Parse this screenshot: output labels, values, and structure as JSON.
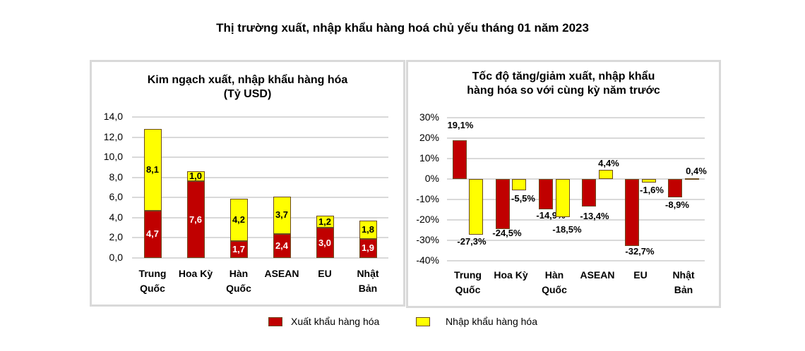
{
  "title": "Thị trường xuất, nhập khẩu hàng hoá chủ yếu tháng 01 năm 2023",
  "legend": [
    {
      "label": "Xuất khẩu hàng hóa",
      "color": "#c00000"
    },
    {
      "label": "Nhập khẩu hàng hóa",
      "color": "#ffff00"
    }
  ],
  "chart_data": [
    {
      "type": "bar",
      "stacked": true,
      "title": "Kim ngạch xuất, nhập khẩu hàng hóa",
      "subtitle": "(Tỷ USD)",
      "categories": [
        "Trung Quốc",
        "Hoa Kỳ",
        "Hàn Quốc",
        "ASEAN",
        "EU",
        "Nhật Bản"
      ],
      "category_lines": [
        [
          "Trung",
          "Quốc"
        ],
        [
          "Hoa Kỳ"
        ],
        [
          "Hàn",
          "Quốc"
        ],
        [
          "ASEAN"
        ],
        [
          "EU"
        ],
        [
          "Nhật",
          "Bản"
        ]
      ],
      "series": [
        {
          "name": "Xuất khẩu hàng hóa",
          "values": [
            4.7,
            7.6,
            1.7,
            2.4,
            3.0,
            1.9
          ],
          "labels": [
            "4,7",
            "7,6",
            "1,7",
            "2,4",
            "3,0",
            "1,9"
          ],
          "color": "#c00000"
        },
        {
          "name": "Nhập khẩu hàng hóa",
          "values": [
            8.1,
            1.0,
            4.2,
            3.7,
            1.2,
            1.8
          ],
          "labels": [
            "8,1",
            "1,0",
            "4,2",
            "3,7",
            "1,2",
            "1,8"
          ],
          "color": "#ffff00"
        }
      ],
      "xlabel": "",
      "ylabel": "",
      "ylim": [
        0,
        14
      ],
      "yticks": [
        "14,0",
        "12,0",
        "10,0",
        "8,0",
        "6,0",
        "4,0",
        "2,0",
        "0,0"
      ],
      "grid": true,
      "legend_position": "bottom"
    },
    {
      "type": "bar",
      "stacked": false,
      "title": "Tốc độ tăng/giảm xuất, nhập khẩu",
      "subtitle": "hàng hóa so với cùng kỳ năm trước",
      "categories": [
        "Trung Quốc",
        "Hoa Kỳ",
        "Hàn Quốc",
        "ASEAN",
        "EU",
        "Nhật Bản"
      ],
      "category_lines": [
        [
          "Trung",
          "Quốc"
        ],
        [
          "Hoa Kỳ"
        ],
        [
          "Hàn",
          "Quốc"
        ],
        [
          "ASEAN"
        ],
        [
          "EU"
        ],
        [
          "Nhật",
          "Bản"
        ]
      ],
      "series": [
        {
          "name": "Xuất khẩu hàng hóa",
          "values": [
            19.1,
            -24.5,
            -14.9,
            -13.4,
            -32.7,
            -8.9
          ],
          "labels": [
            "19,1%",
            "-24,5%",
            "-14,9%",
            "-13,4%",
            "-32,7%",
            "-8,9%"
          ],
          "color": "#c00000"
        },
        {
          "name": "Nhập khẩu hàng hóa",
          "values": [
            -27.3,
            -5.5,
            -18.5,
            4.4,
            -1.6,
            0.4
          ],
          "labels": [
            "-27,3%",
            "-5,5%",
            "-18,5%",
            "4,4%",
            "-1,6%",
            "0,4%"
          ],
          "color": "#ffff00"
        }
      ],
      "xlabel": "",
      "ylabel": "",
      "ylim": [
        -40,
        30
      ],
      "yticks": [
        "30%",
        "20%",
        "10%",
        "0%",
        "-10%",
        "-20%",
        "-30%",
        "-40%"
      ],
      "grid": true,
      "legend_position": "bottom"
    }
  ]
}
